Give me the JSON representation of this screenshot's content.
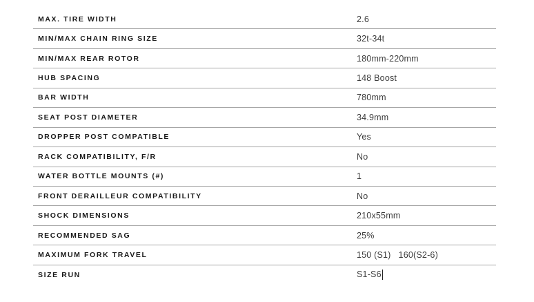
{
  "table": {
    "divider_color": "#a6a6a6",
    "label_color": "#1a1a1a",
    "value_color": "#3d3d3d",
    "rows": [
      {
        "label": "MAX. TIRE WIDTH",
        "value": "2.6"
      },
      {
        "label": "MIN/MAX CHAIN RING SIZE",
        "value": "32t-34t"
      },
      {
        "label": "MIN/MAX REAR ROTOR",
        "value": "180mm-220mm"
      },
      {
        "label": "HUB SPACING",
        "value": "148 Boost"
      },
      {
        "label": "BAR WIDTH",
        "value": "780mm"
      },
      {
        "label": "SEAT POST DIAMETER",
        "value": "34.9mm"
      },
      {
        "label": "DROPPER POST COMPATIBLE",
        "value": "Yes"
      },
      {
        "label": "RACK COMPATIBILITY, F/R",
        "value": "No"
      },
      {
        "label": "WATER BOTTLE MOUNTS (#)",
        "value": "1"
      },
      {
        "label": "FRONT DERAILLEUR COMPATIBILITY",
        "value": "No"
      },
      {
        "label": "SHOCK DIMENSIONS",
        "value": "210x55mm"
      },
      {
        "label": "RECOMMENDED SAG",
        "value": "25%"
      },
      {
        "label": "MAXIMUM FORK TRAVEL",
        "value": "150 (S1)   160(S2-6)"
      },
      {
        "label": "SIZE RUN",
        "value": "S1-S6",
        "caret": true
      }
    ]
  }
}
